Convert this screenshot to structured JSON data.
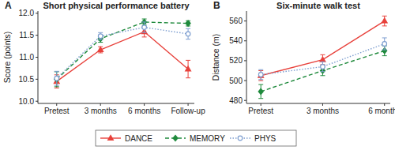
{
  "chart_data": [
    {
      "type": "line",
      "annotation": "A",
      "title": "Short physical performance battery",
      "y_label": "Score (points)",
      "categories": [
        "Pretest",
        "3 months",
        "6 months",
        "Follow-up"
      ],
      "ylim": [
        9.95,
        12.05
      ],
      "yticks": [
        {
          "value": 10,
          "label": "10.0"
        },
        10.5,
        {
          "value": 11,
          "label": "11.0"
        },
        11.5,
        {
          "value": 12,
          "label": "12.0"
        }
      ],
      "legend": "bottom",
      "series": [
        {
          "name": "DANCE",
          "color": "#e8413b",
          "marker": "triangle",
          "line_style": "solid",
          "values": [
            10.45,
            11.17,
            11.58,
            10.73
          ],
          "errors": [
            0.15,
            0.07,
            0.12,
            0.2
          ]
        },
        {
          "name": "MEMORY",
          "color": "#1f8a3c",
          "marker": "diamond",
          "line_style": "dashed",
          "values": [
            10.5,
            11.42,
            11.8,
            11.77
          ],
          "errors": [
            0.17,
            0.08,
            0.07,
            0.06
          ]
        },
        {
          "name": "PHYS",
          "color": "#7f9fd0",
          "marker": "circle",
          "line_style": "dotted",
          "values": [
            10.52,
            11.48,
            11.68,
            11.53
          ],
          "errors": [
            0.16,
            0.08,
            0.12,
            0.12
          ]
        }
      ]
    },
    {
      "type": "line",
      "annotation": "B",
      "title": "Six-minute walk test",
      "y_label": "Distance (m)",
      "categories": [
        "Pretest",
        "3 months",
        "6 months"
      ],
      "ylim": [
        477,
        570
      ],
      "yticks": [
        480,
        500,
        520,
        540,
        560
      ],
      "series": [
        {
          "name": "DANCE",
          "color": "#e8413b",
          "marker": "triangle",
          "line_style": "solid",
          "values": [
            505,
            521,
            560
          ],
          "errors": [
            5,
            5,
            5
          ]
        },
        {
          "name": "MEMORY",
          "color": "#1f8a3c",
          "marker": "diamond",
          "line_style": "dashed",
          "values": [
            489,
            510,
            530
          ],
          "errors": [
            7,
            5,
            5
          ]
        },
        {
          "name": "PHYS",
          "color": "#7f9fd0",
          "marker": "circle",
          "line_style": "dotted",
          "values": [
            506,
            514,
            537
          ],
          "errors": [
            5,
            5,
            6
          ]
        }
      ]
    }
  ]
}
